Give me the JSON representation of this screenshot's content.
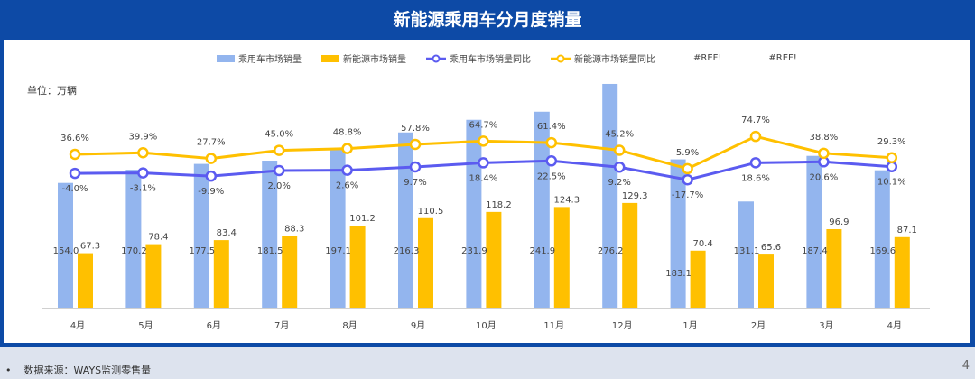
{
  "title": "新能源乘用车分月度销量",
  "unit": "单位：万辆",
  "legend": [
    "乘用车市场销量",
    "新能源市场销量",
    "乘用车市场销量同比",
    "新能源市场销量同比",
    "#REF!",
    "#REF!"
  ],
  "footer": {
    "bullet": "•",
    "source": "数据来源：WAYS监测零售量",
    "page": "4"
  },
  "chart_data": {
    "type": "bar+line",
    "categories": [
      "4月",
      "5月",
      "6月",
      "7月",
      "8月",
      "9月",
      "10月",
      "11月",
      "12月",
      "1月",
      "2月",
      "3月",
      "4月"
    ],
    "series": [
      {
        "name": "乘用车市场销量",
        "type": "bar",
        "color": "#93b5ee",
        "values": [
          154.0,
          170.2,
          177.5,
          181.5,
          197.1,
          216.3,
          231.9,
          241.9,
          276.2,
          183.1,
          131.1,
          187.4,
          169.6
        ]
      },
      {
        "name": "新能源市场销量",
        "type": "bar",
        "color": "#ffc000",
        "values": [
          67.3,
          78.4,
          83.4,
          88.3,
          101.2,
          110.5,
          118.2,
          124.3,
          129.3,
          70.4,
          65.6,
          96.9,
          87.1
        ]
      },
      {
        "name": "乘用车市场销量同比",
        "type": "line",
        "unit": "%",
        "color": "#5b5bf0",
        "values": [
          -4.0,
          -3.1,
          -9.9,
          2.0,
          2.6,
          9.7,
          18.4,
          22.5,
          9.2,
          -17.7,
          18.6,
          20.6,
          10.1
        ]
      },
      {
        "name": "新能源市场销量同比",
        "type": "line",
        "unit": "%",
        "color": "#ffc000",
        "values": [
          36.6,
          39.9,
          27.7,
          45.0,
          48.8,
          57.8,
          64.7,
          61.4,
          45.2,
          5.9,
          74.7,
          38.8,
          29.3
        ]
      }
    ]
  }
}
